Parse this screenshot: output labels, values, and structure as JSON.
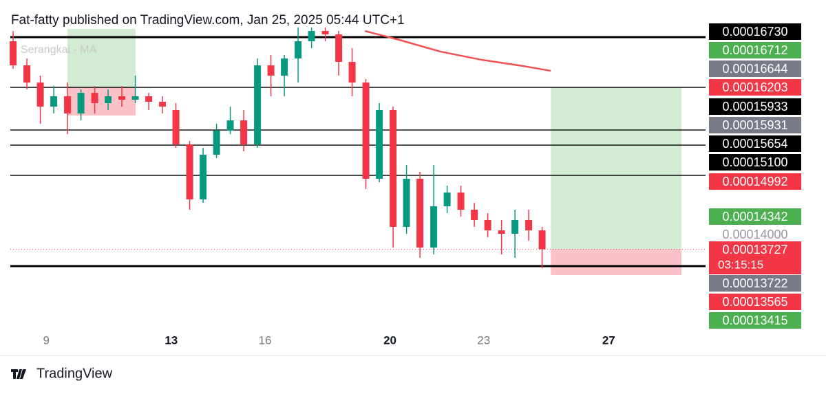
{
  "header": "Fat-fatty published on TradingView.com, Jan 25, 2025 05:44 UTC+1",
  "footer": "TradingView",
  "chart_data": {
    "type": "candlestick",
    "legend": "Serangkai - MA",
    "xlim": [
      7.85,
      30.1
    ],
    "xticks": [
      9,
      13,
      16,
      20,
      23,
      27
    ],
    "ylim": [
      0.00012494,
      0.00017219
    ],
    "up_color": "#089981",
    "down_color": "#f23645",
    "x": [
      7.94,
      8.38,
      8.81,
      9.24,
      9.68,
      10.11,
      10.55,
      10.98,
      11.42,
      11.85,
      12.28,
      12.72,
      13.15,
      13.59,
      14.02,
      14.45,
      14.89,
      15.32,
      15.76,
      16.19,
      16.62,
      17.06,
      17.49,
      17.93,
      18.36,
      18.79,
      19.23,
      19.66,
      20.1,
      20.53,
      20.96,
      21.4,
      21.83,
      22.27,
      22.7,
      23.13,
      23.57,
      24.0,
      24.44,
      24.87
    ],
    "open": [
      0.00016904,
      0.00016536,
      0.00016274,
      0.00015906,
      0.00016064,
      0.00015801,
      0.00016116,
      0.00015959,
      0.00016064,
      0.00016011,
      0.00016064,
      0.0001598,
      0.00015854,
      0.00015329,
      0.00014489,
      0.00015171,
      0.00015539,
      0.00015696,
      0.00015329,
      0.00016536,
      0.00016379,
      0.00016641,
      0.00016904,
      0.00017061,
      0.00017009,
      0.00016589,
      0.00016274,
      0.00014804,
      0.00015854,
      0.00014069,
      0.00014804,
      0.00013754,
      0.00014384,
      0.00014594,
      0.00014331,
      0.00014174,
      0.00014016,
      0.00013964,
      0.00014174,
      0.00014016
    ],
    "high": [
      0.00017061,
      0.00016641,
      0.00016379,
      0.00016221,
      0.00016274,
      0.00016169,
      0.00016221,
      0.00016169,
      0.00016221,
      0.00016379,
      0.00016116,
      0.00016064,
      0.00015959,
      0.00015381,
      0.00015276,
      0.00015644,
      0.00015906,
      0.00015854,
      0.00016641,
      0.00016694,
      0.00016694,
      0.00017114,
      0.00017114,
      0.00017114,
      0.00017061,
      0.00016799,
      0.00016326,
      0.00015959,
      0.00015906,
      0.00015014,
      0.00014909,
      0.00015014,
      0.00014699,
      0.00014699,
      0.00014436,
      0.00014279,
      0.00014174,
      0.00014331,
      0.00014331,
      0.00014069
    ],
    "low": [
      0.00016484,
      0.00016169,
      0.00015644,
      0.00015801,
      0.00015486,
      0.00015696,
      0.00015801,
      0.00015854,
      0.00015906,
      0.00015959,
      0.00015854,
      0.00015801,
      0.00015276,
      0.00014331,
      0.00014436,
      0.00015119,
      0.00015486,
      0.00015224,
      0.00015276,
      0.00016064,
      0.00016064,
      0.00016274,
      0.00016799,
      0.00016904,
      0.00016379,
      0.00016064,
      0.00014646,
      0.00014751,
      0.00013754,
      0.00013964,
      0.00013596,
      0.00013649,
      0.00014279,
      0.00014226,
      0.00014069,
      0.00013911,
      0.00013649,
      0.00013596,
      0.00013859,
      0.00013439
    ],
    "close": [
      0.00016536,
      0.00016274,
      0.00015906,
      0.00016064,
      0.00015801,
      0.00016116,
      0.00015959,
      0.00016064,
      0.00016011,
      0.00016064,
      0.0001598,
      0.00015906,
      0.00015329,
      0.00014489,
      0.00015171,
      0.00015539,
      0.00015696,
      0.00015329,
      0.00016536,
      0.00016379,
      0.00016641,
      0.00016904,
      0.00017061,
      0.00017009,
      0.00016589,
      0.00016274,
      0.00014804,
      0.00015854,
      0.00014069,
      0.00014804,
      0.00013754,
      0.00014384,
      0.00014594,
      0.00014331,
      0.00014174,
      0.00014016,
      0.00013964,
      0.00014174,
      0.00014016,
      0.00013727
    ],
    "ma": {
      "color": "#f0504f",
      "x": [
        19.2,
        20.3,
        21.62,
        22.94,
        24.26,
        25.15
      ],
      "values": [
        0.00017061,
        0.00016925,
        0.00016746,
        0.0001662,
        0.00016526,
        0.00016452
      ]
    },
    "levels": [
      0.00016967,
      0.000162,
      0.00015549,
      0.00015318,
      0.00014856,
      0.0001347
    ],
    "current_price": 0.00013727,
    "countdown": "03:15:15",
    "positions": [
      {
        "x": [
          9.68,
          11.86
        ],
        "target": 0.00017092,
        "entry": 0.000162,
        "stop": 0.0001577
      },
      {
        "x": [
          25.15,
          29.33
        ],
        "target": 0.000162,
        "entry": 0.00013727,
        "stop": 0.00013334
      }
    ],
    "price_labels": [
      {
        "value": 0.0001673,
        "label": "0.00016730",
        "color": "#000000"
      },
      {
        "value": 0.00016712,
        "label": "0.00016712",
        "color": "#4caf50"
      },
      {
        "value": 0.00016644,
        "label": "0.00016644",
        "color": "#787b86"
      },
      {
        "value": 0.00016203,
        "label": "0.00016203",
        "color": "#f23645"
      },
      {
        "value": 0.00015933,
        "label": "0.00015933",
        "color": "#000000"
      },
      {
        "value": 0.00015931,
        "label": "0.00015931",
        "color": "#787b86"
      },
      {
        "value": 0.00015654,
        "label": "0.00015654",
        "color": "#000000"
      },
      {
        "value": 0.000151,
        "label": "0.00015100",
        "color": "#000000"
      },
      {
        "value": 0.00014992,
        "label": "0.00014992",
        "color": "#f23645"
      },
      {
        "value": 0.00014342,
        "label": "0.00014342",
        "color": "#4caf50"
      },
      {
        "value": 0.00014,
        "label": "0.00014000",
        "color": "#ffffff"
      },
      {
        "value": 0.00013727,
        "label": "0.00013727",
        "color": "#f23645"
      },
      {
        "value": 0.00013722,
        "label": "0.00013722",
        "color": "#787b86"
      },
      {
        "value": 0.00013565,
        "label": "0.00013565",
        "color": "#f23645"
      },
      {
        "value": 0.00013415,
        "label": "0.00013415",
        "color": "#4caf50"
      }
    ]
  }
}
